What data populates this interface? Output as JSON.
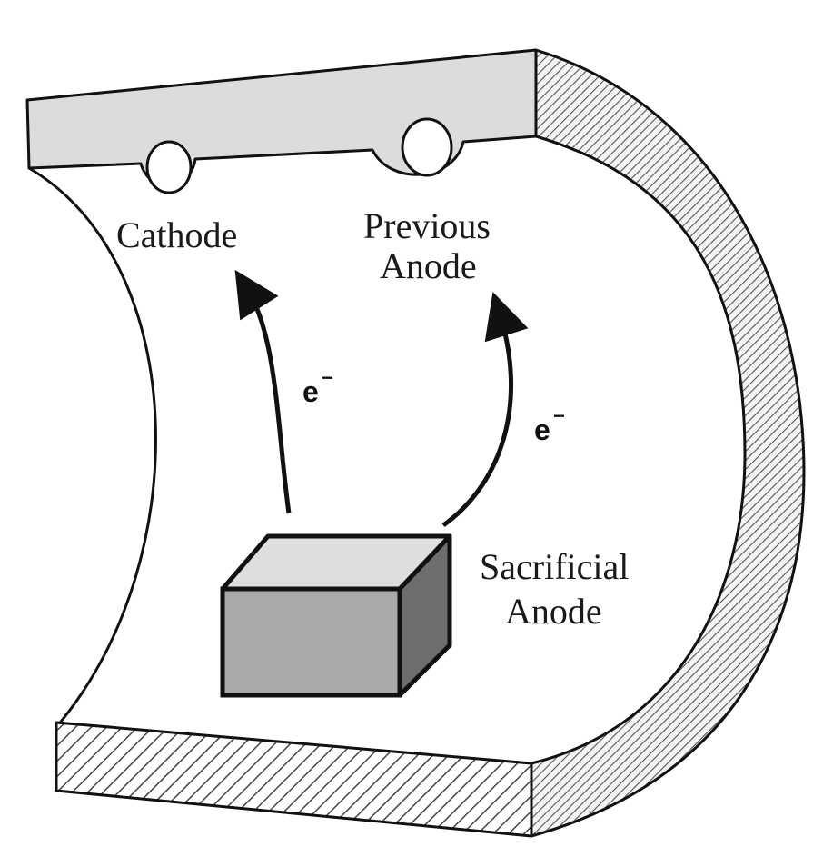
{
  "labels": {
    "cathode": "Cathode",
    "previous_anode_line1": "Previous",
    "previous_anode_line2": "Anode",
    "sacrificial_anode_line1": "Sacrificial",
    "sacrificial_anode_line2": "Anode",
    "electron_symbol": "e",
    "electron_charge": "−"
  },
  "colors": {
    "background": "#ffffff",
    "outline": "#111111",
    "flange_fill": "#dcdcdc",
    "hatch": "#444444",
    "block_front": "#a9a9a9",
    "block_top": "#dedede",
    "block_side": "#6e6e6e"
  }
}
